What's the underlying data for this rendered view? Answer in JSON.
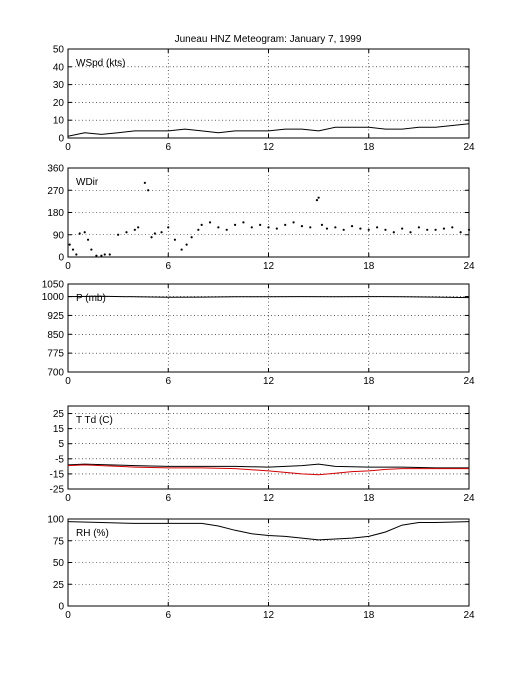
{
  "chart_data": [
    {
      "type": "line",
      "title": "Juneau HNZ Meteogram:    January  7, 1999",
      "panel_label": "WSpd (kts)",
      "xlim": [
        0,
        24
      ],
      "xticks": [
        0,
        6,
        12,
        18,
        24
      ],
      "ylim": [
        0,
        50
      ],
      "yticks": [
        0,
        10,
        20,
        30,
        40,
        50
      ],
      "grid": true,
      "series": [
        {
          "color": "#000000",
          "marker": "none",
          "x": [
            0,
            1,
            2,
            3,
            4,
            5,
            6,
            7,
            8,
            9,
            10,
            11,
            12,
            13,
            14,
            15,
            16,
            17,
            18,
            19,
            20,
            21,
            22,
            23,
            24
          ],
          "y": [
            1,
            3,
            2,
            3,
            4,
            4,
            4,
            5,
            4,
            3,
            4,
            4,
            4,
            5,
            5,
            4,
            6,
            6,
            6,
            5,
            5,
            6,
            6,
            7,
            8
          ]
        }
      ]
    },
    {
      "type": "scatter",
      "panel_label": "WDir",
      "xlim": [
        0,
        24
      ],
      "xticks": [
        0,
        6,
        12,
        18,
        24
      ],
      "ylim": [
        0,
        360
      ],
      "yticks": [
        0,
        90,
        180,
        270,
        360
      ],
      "grid": true,
      "series": [
        {
          "color": "#000000",
          "marker": "dot",
          "x": [
            0.1,
            0.3,
            0.5,
            0.7,
            1.0,
            1.2,
            1.4,
            1.7,
            2.0,
            2.2,
            2.5,
            3.0,
            3.5,
            4.0,
            4.2,
            4.6,
            4.8,
            5.0,
            5.2,
            5.6,
            6.0,
            6.4,
            6.8,
            7.1,
            7.4,
            7.8,
            8.0,
            8.5,
            9.0,
            9.5,
            10.0,
            10.5,
            11.0,
            11.5,
            12.0,
            12.5,
            13.0,
            13.5,
            14.0,
            14.5,
            14.9,
            15.0,
            15.2,
            15.5,
            16.0,
            16.5,
            17.0,
            17.5,
            18.0,
            18.5,
            19.0,
            19.5,
            20.0,
            20.5,
            21.0,
            21.5,
            22.0,
            22.5,
            23.0,
            23.5,
            24.0
          ],
          "y": [
            50,
            30,
            10,
            95,
            100,
            70,
            30,
            5,
            5,
            10,
            10,
            90,
            100,
            110,
            120,
            300,
            270,
            80,
            95,
            100,
            120,
            70,
            30,
            50,
            80,
            110,
            130,
            140,
            120,
            110,
            130,
            140,
            120,
            130,
            120,
            115,
            130,
            140,
            125,
            120,
            230,
            240,
            130,
            115,
            120,
            110,
            125,
            115,
            110,
            120,
            110,
            100,
            115,
            100,
            120,
            110,
            110,
            115,
            120,
            100,
            110
          ]
        }
      ]
    },
    {
      "type": "line",
      "panel_label": "P (mb)",
      "xlim": [
        0,
        24
      ],
      "xticks": [
        0,
        6,
        12,
        18,
        24
      ],
      "ylim": [
        700,
        1050
      ],
      "yticks": [
        700,
        775,
        850,
        925,
        1000,
        1050
      ],
      "grid": true,
      "series": [
        {
          "color": "#000000",
          "marker": "none",
          "x": [
            0,
            2,
            4,
            6,
            8,
            10,
            12,
            14,
            16,
            18,
            20,
            22,
            24
          ],
          "y": [
            1000,
            1001,
            999,
            997,
            998,
            999,
            999,
            1000,
            999,
            1000,
            999,
            998,
            996
          ]
        }
      ]
    },
    {
      "type": "line",
      "panel_label": "T Td (C)",
      "xlim": [
        0,
        24
      ],
      "xticks": [
        0,
        6,
        12,
        18,
        24
      ],
      "ylim": [
        -25,
        30
      ],
      "yticks": [
        -25,
        -15,
        -5,
        5,
        15,
        25
      ],
      "grid": true,
      "series": [
        {
          "color": "#000000",
          "marker": "none",
          "x": [
            0,
            1,
            2,
            4,
            6,
            8,
            10,
            12,
            14,
            15,
            16,
            18,
            20,
            22,
            24
          ],
          "y": [
            -9,
            -8.5,
            -8.8,
            -9.5,
            -10,
            -10,
            -10,
            -10.5,
            -9.5,
            -8.5,
            -10,
            -10.5,
            -10.5,
            -11,
            -11
          ]
        },
        {
          "color": "#d40000",
          "marker": "none",
          "x": [
            0,
            1,
            2,
            4,
            6,
            8,
            10,
            12,
            13,
            14,
            15,
            16,
            17,
            18,
            19,
            20,
            22,
            24
          ],
          "y": [
            -9.5,
            -9,
            -9.5,
            -10.5,
            -11,
            -11,
            -11.5,
            -13,
            -14,
            -15,
            -15.5,
            -14.5,
            -13.5,
            -13,
            -12,
            -11.5,
            -11.5,
            -11.5
          ]
        }
      ]
    },
    {
      "type": "line",
      "panel_label": "RH (%)",
      "xlim": [
        0,
        24
      ],
      "xticks": [
        0,
        6,
        12,
        18,
        24
      ],
      "ylim": [
        0,
        100
      ],
      "yticks": [
        0,
        25,
        50,
        75,
        100
      ],
      "grid": true,
      "series": [
        {
          "color": "#000000",
          "marker": "none",
          "x": [
            0,
            2,
            4,
            6,
            8,
            9,
            10,
            11,
            12,
            13,
            14,
            15,
            16,
            17,
            18,
            19,
            20,
            21,
            22,
            24
          ],
          "y": [
            97,
            96,
            95,
            95,
            95,
            92,
            87,
            83,
            81,
            80,
            78,
            76,
            77,
            78,
            80,
            85,
            93,
            96,
            96,
            97
          ]
        }
      ]
    }
  ]
}
